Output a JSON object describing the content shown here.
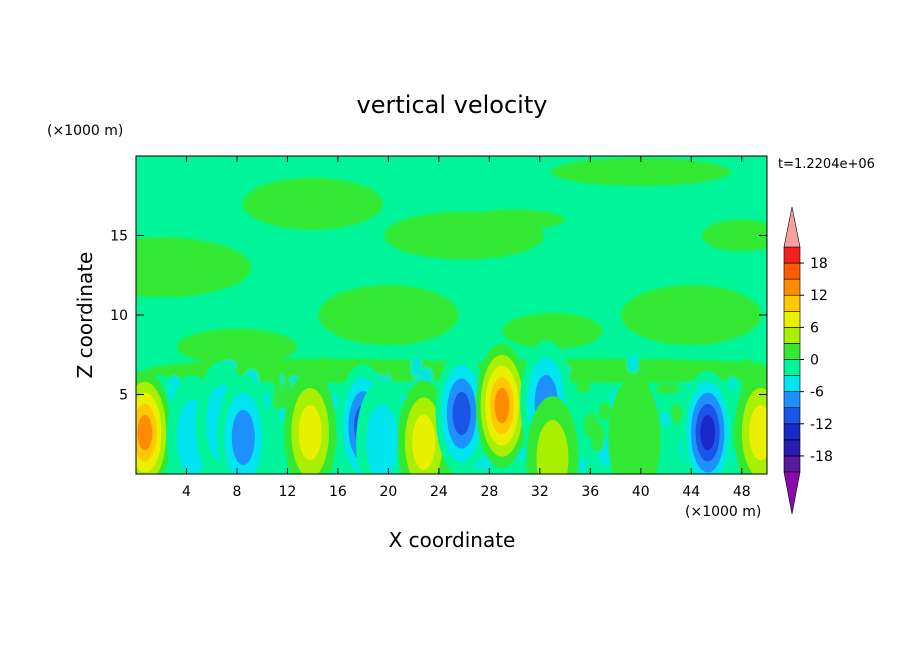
{
  "chart_data": {
    "type": "heatmap",
    "title": "vertical velocity",
    "xlabel": "X coordinate",
    "ylabel": "Z coordinate",
    "x_unit": "(×1000 m)",
    "y_unit": "(×1000 m)",
    "time_label": "t=1.2204e+06",
    "xlim": [
      0,
      50
    ],
    "ylim": [
      0,
      20
    ],
    "x_ticks": [
      4,
      8,
      12,
      16,
      20,
      24,
      28,
      32,
      36,
      40,
      44,
      48
    ],
    "y_ticks": [
      5,
      10,
      15
    ],
    "colorbar": {
      "range": [
        -21,
        21
      ],
      "ticks": [
        18,
        12,
        6,
        0,
        -6,
        -12,
        -18
      ],
      "levels": [
        {
          "lo": -21,
          "hi": -18,
          "color": "#5a1aa0"
        },
        {
          "lo": -18,
          "hi": -15,
          "color": "#2a1ab0"
        },
        {
          "lo": -15,
          "hi": -12,
          "color": "#1a2ac8"
        },
        {
          "lo": -12,
          "hi": -9,
          "color": "#1a55e8"
        },
        {
          "lo": -9,
          "hi": -6,
          "color": "#1e90ff"
        },
        {
          "lo": -6,
          "hi": -3,
          "color": "#00e5ee"
        },
        {
          "lo": -3,
          "hi": 0,
          "color": "#00f59a"
        },
        {
          "lo": 0,
          "hi": 3,
          "color": "#33e833"
        },
        {
          "lo": 3,
          "hi": 6,
          "color": "#a8f000"
        },
        {
          "lo": 6,
          "hi": 9,
          "color": "#e8f000"
        },
        {
          "lo": 9,
          "hi": 12,
          "color": "#ffc800"
        },
        {
          "lo": 12,
          "hi": 15,
          "color": "#ff8c00"
        },
        {
          "lo": 15,
          "hi": 18,
          "color": "#ff5a00"
        },
        {
          "lo": 18,
          "hi": 21,
          "color": "#f51e1e"
        }
      ],
      "low_extension_color": "#8c0aa8",
      "high_extension_color": "#f5a0a0"
    },
    "cells": [
      {
        "x": 0.7,
        "z": 2.6,
        "value": 13
      },
      {
        "x": 4.5,
        "z": 2.3,
        "value": -6
      },
      {
        "x": 6.8,
        "z": 3.2,
        "value": -5
      },
      {
        "x": 8.5,
        "z": 2.3,
        "value": -8
      },
      {
        "x": 13.8,
        "z": 2.6,
        "value": 9
      },
      {
        "x": 18.0,
        "z": 3.0,
        "value": -11
      },
      {
        "x": 19.5,
        "z": 2.0,
        "value": -5
      },
      {
        "x": 22.8,
        "z": 2.0,
        "value": 8
      },
      {
        "x": 25.8,
        "z": 3.8,
        "value": -12
      },
      {
        "x": 29.0,
        "z": 4.3,
        "value": 13
      },
      {
        "x": 32.5,
        "z": 4.5,
        "value": -7
      },
      {
        "x": 33.0,
        "z": 1.0,
        "value": 4
      },
      {
        "x": 39.5,
        "z": 2.2,
        "value": 3
      },
      {
        "x": 45.3,
        "z": 2.6,
        "value": -15
      },
      {
        "x": 49.5,
        "z": 2.6,
        "value": 8
      }
    ]
  }
}
